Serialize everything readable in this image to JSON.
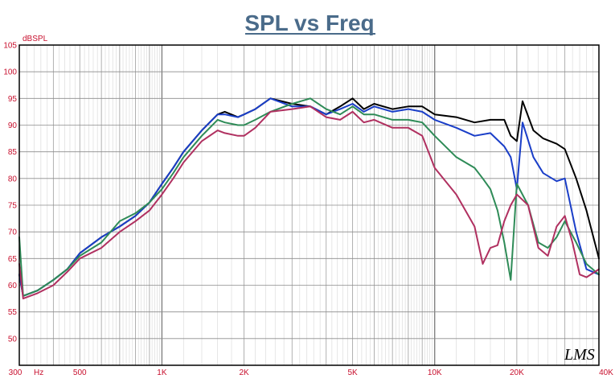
{
  "chart_data": {
    "type": "line",
    "title": "SPL vs Freq",
    "ylabel": "dBSPL",
    "xlabel": "",
    "x_scale": "log",
    "xlim": [
      300,
      40000
    ],
    "ylim": [
      45,
      105
    ],
    "y_ticks": [
      50,
      55,
      60,
      65,
      70,
      75,
      80,
      85,
      90,
      95,
      100,
      105
    ],
    "x_ticks": [
      {
        "value": 300,
        "label": "300"
      },
      {
        "value": 500,
        "label": "500"
      },
      {
        "value": 1000,
        "label": "1K"
      },
      {
        "value": 2000,
        "label": "2K"
      },
      {
        "value": 5000,
        "label": "5K"
      },
      {
        "value": 10000,
        "label": "10K"
      },
      {
        "value": 20000,
        "label": "20K"
      },
      {
        "value": 40000,
        "label": "40K"
      }
    ],
    "x_unit_label": "Hz",
    "grid": true,
    "watermark": "LMS",
    "series": [
      {
        "color": "#000000",
        "points": [
          [
            300,
            62
          ],
          [
            310,
            58
          ],
          [
            350,
            59
          ],
          [
            400,
            61
          ],
          [
            450,
            63
          ],
          [
            500,
            66
          ],
          [
            600,
            69
          ],
          [
            700,
            71
          ],
          [
            800,
            73
          ],
          [
            900,
            75.5
          ],
          [
            1000,
            79
          ],
          [
            1100,
            82
          ],
          [
            1200,
            85
          ],
          [
            1400,
            89
          ],
          [
            1600,
            92
          ],
          [
            1700,
            92.5
          ],
          [
            1900,
            91.5
          ],
          [
            2000,
            92
          ],
          [
            2200,
            93
          ],
          [
            2500,
            95
          ],
          [
            3000,
            94
          ],
          [
            3500,
            93.5
          ],
          [
            4000,
            92
          ],
          [
            4500,
            93.5
          ],
          [
            5000,
            95
          ],
          [
            5500,
            93
          ],
          [
            6000,
            94
          ],
          [
            7000,
            93
          ],
          [
            8000,
            93.5
          ],
          [
            9000,
            93.5
          ],
          [
            10000,
            92
          ],
          [
            12000,
            91.5
          ],
          [
            14000,
            90.5
          ],
          [
            16000,
            91
          ],
          [
            18000,
            91
          ],
          [
            19000,
            88
          ],
          [
            20000,
            87
          ],
          [
            21000,
            94.5
          ],
          [
            23000,
            89
          ],
          [
            25000,
            87.5
          ],
          [
            28000,
            86.5
          ],
          [
            30000,
            85.5
          ],
          [
            33000,
            80
          ],
          [
            36000,
            74
          ],
          [
            40000,
            65
          ]
        ]
      },
      {
        "color": "#1a3ec8",
        "points": [
          [
            300,
            62
          ],
          [
            310,
            58
          ],
          [
            350,
            59
          ],
          [
            400,
            61
          ],
          [
            450,
            63
          ],
          [
            500,
            66
          ],
          [
            600,
            69
          ],
          [
            700,
            71
          ],
          [
            800,
            73
          ],
          [
            900,
            75.5
          ],
          [
            1000,
            79
          ],
          [
            1100,
            82
          ],
          [
            1200,
            85
          ],
          [
            1400,
            89
          ],
          [
            1600,
            92
          ],
          [
            1700,
            92
          ],
          [
            1900,
            91.5
          ],
          [
            2000,
            92
          ],
          [
            2200,
            93
          ],
          [
            2500,
            95
          ],
          [
            3000,
            93.5
          ],
          [
            3500,
            93.5
          ],
          [
            4000,
            92
          ],
          [
            4500,
            93
          ],
          [
            5000,
            94
          ],
          [
            5500,
            92.5
          ],
          [
            6000,
            93.5
          ],
          [
            7000,
            92.5
          ],
          [
            8000,
            93
          ],
          [
            9000,
            92.5
          ],
          [
            10000,
            91
          ],
          [
            12000,
            89.5
          ],
          [
            14000,
            88
          ],
          [
            16000,
            88.5
          ],
          [
            18000,
            86
          ],
          [
            19000,
            84
          ],
          [
            20000,
            78
          ],
          [
            21000,
            90.5
          ],
          [
            23000,
            84
          ],
          [
            25000,
            81
          ],
          [
            28000,
            79.5
          ],
          [
            30000,
            80
          ],
          [
            33000,
            70
          ],
          [
            36000,
            63
          ],
          [
            40000,
            62
          ]
        ]
      },
      {
        "color": "#2e8b57",
        "points": [
          [
            300,
            69
          ],
          [
            310,
            58
          ],
          [
            350,
            59
          ],
          [
            400,
            61
          ],
          [
            450,
            63
          ],
          [
            500,
            65.5
          ],
          [
            600,
            68
          ],
          [
            700,
            72
          ],
          [
            800,
            73.5
          ],
          [
            900,
            75.5
          ],
          [
            1000,
            78
          ],
          [
            1100,
            81
          ],
          [
            1200,
            84
          ],
          [
            1400,
            88
          ],
          [
            1600,
            91
          ],
          [
            1700,
            90.5
          ],
          [
            1900,
            90
          ],
          [
            2000,
            90
          ],
          [
            2200,
            91
          ],
          [
            2500,
            92.5
          ],
          [
            3000,
            94
          ],
          [
            3500,
            95
          ],
          [
            4000,
            93
          ],
          [
            4500,
            92
          ],
          [
            5000,
            93.5
          ],
          [
            5500,
            92
          ],
          [
            6000,
            92
          ],
          [
            7000,
            91
          ],
          [
            8000,
            91
          ],
          [
            9000,
            90.5
          ],
          [
            10000,
            88
          ],
          [
            12000,
            84
          ],
          [
            14000,
            82
          ],
          [
            15000,
            80
          ],
          [
            16000,
            78
          ],
          [
            17000,
            74
          ],
          [
            18000,
            68
          ],
          [
            19000,
            61
          ],
          [
            20000,
            79
          ],
          [
            22000,
            75
          ],
          [
            24000,
            68
          ],
          [
            26000,
            67
          ],
          [
            28000,
            69
          ],
          [
            30000,
            72
          ],
          [
            33000,
            68
          ],
          [
            36000,
            64
          ],
          [
            40000,
            62
          ]
        ]
      },
      {
        "color": "#b03060",
        "points": [
          [
            300,
            64
          ],
          [
            310,
            57.5
          ],
          [
            350,
            58.5
          ],
          [
            400,
            60
          ],
          [
            450,
            62.5
          ],
          [
            500,
            65
          ],
          [
            600,
            67
          ],
          [
            700,
            70
          ],
          [
            800,
            72
          ],
          [
            900,
            74
          ],
          [
            1000,
            77
          ],
          [
            1100,
            80
          ],
          [
            1200,
            83
          ],
          [
            1400,
            87
          ],
          [
            1600,
            89
          ],
          [
            1700,
            88.5
          ],
          [
            1900,
            88
          ],
          [
            2000,
            88
          ],
          [
            2200,
            89.5
          ],
          [
            2500,
            92.5
          ],
          [
            3000,
            93
          ],
          [
            3500,
            93.5
          ],
          [
            4000,
            91.5
          ],
          [
            4500,
            91
          ],
          [
            5000,
            92.5
          ],
          [
            5500,
            90.5
          ],
          [
            6000,
            91
          ],
          [
            7000,
            89.5
          ],
          [
            8000,
            89.5
          ],
          [
            9000,
            88
          ],
          [
            10000,
            82
          ],
          [
            12000,
            77
          ],
          [
            14000,
            71
          ],
          [
            15000,
            64
          ],
          [
            16000,
            67
          ],
          [
            17000,
            67.5
          ],
          [
            18000,
            72
          ],
          [
            19000,
            75
          ],
          [
            20000,
            77
          ],
          [
            22000,
            75
          ],
          [
            24000,
            67
          ],
          [
            26000,
            65.5
          ],
          [
            28000,
            71
          ],
          [
            30000,
            73
          ],
          [
            32000,
            68
          ],
          [
            34000,
            62
          ],
          [
            36000,
            61.5
          ],
          [
            40000,
            63
          ]
        ]
      }
    ]
  }
}
